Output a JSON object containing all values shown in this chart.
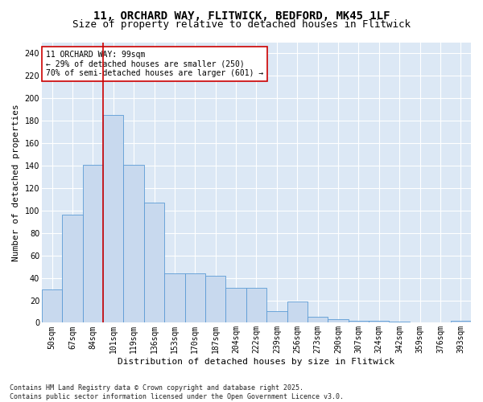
{
  "title1": "11, ORCHARD WAY, FLITWICK, BEDFORD, MK45 1LF",
  "title2": "Size of property relative to detached houses in Flitwick",
  "xlabel": "Distribution of detached houses by size in Flitwick",
  "ylabel": "Number of detached properties",
  "categories": [
    "50sqm",
    "67sqm",
    "84sqm",
    "101sqm",
    "119sqm",
    "136sqm",
    "153sqm",
    "170sqm",
    "187sqm",
    "204sqm",
    "222sqm",
    "239sqm",
    "256sqm",
    "273sqm",
    "290sqm",
    "307sqm",
    "324sqm",
    "342sqm",
    "359sqm",
    "376sqm",
    "393sqm"
  ],
  "values": [
    30,
    96,
    141,
    185,
    141,
    107,
    44,
    44,
    42,
    31,
    31,
    10,
    19,
    5,
    3,
    2,
    2,
    1,
    0,
    0,
    2
  ],
  "bar_color": "#c8d9ee",
  "bar_edge_color": "#5b9bd5",
  "vline_color": "#cc0000",
  "vline_pos": 2.5,
  "annotation_text": "11 ORCHARD WAY: 99sqm\n← 29% of detached houses are smaller (250)\n70% of semi-detached houses are larger (601) →",
  "annotation_box_color": "#ffffff",
  "annotation_box_edge_color": "#cc0000",
  "ylim": [
    0,
    250
  ],
  "yticks": [
    0,
    20,
    40,
    60,
    80,
    100,
    120,
    140,
    160,
    180,
    200,
    220,
    240
  ],
  "bg_color": "#dce8f5",
  "grid_color": "#ffffff",
  "footer": "Contains HM Land Registry data © Crown copyright and database right 2025.\nContains public sector information licensed under the Open Government Licence v3.0.",
  "title_fontsize": 10,
  "subtitle_fontsize": 9,
  "ylabel_fontsize": 8,
  "xlabel_fontsize": 8,
  "tick_fontsize": 7,
  "annotation_fontsize": 7,
  "footer_fontsize": 6
}
